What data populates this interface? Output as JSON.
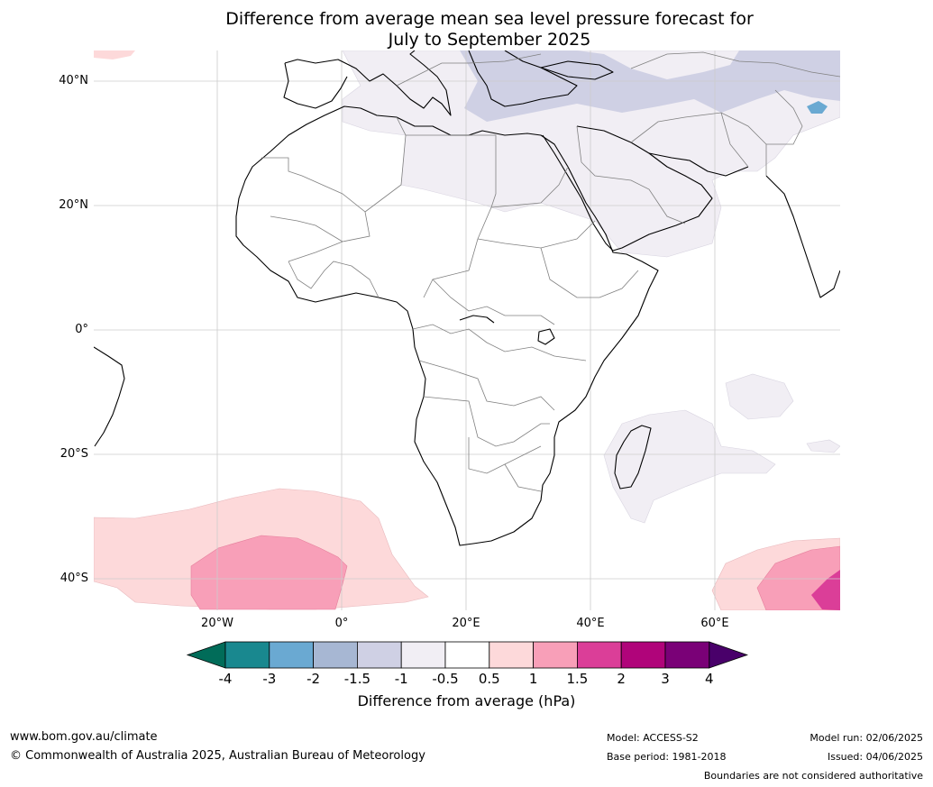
{
  "title_line1": "Difference from average mean sea level pressure forecast for",
  "title_line2": "July to September 2025",
  "map": {
    "lat_labels": [
      "40°N",
      "20°N",
      "0°",
      "20°S",
      "40°S"
    ],
    "lon_labels": [
      "20°W",
      "0°",
      "20°E",
      "40°E",
      "60°E"
    ],
    "lon_range": [
      -40,
      80
    ],
    "lat_range": [
      -45,
      45
    ]
  },
  "colorbar": {
    "ticks": [
      "-4",
      "-3",
      "-2",
      "-1.5",
      "-1",
      "-0.5",
      "0.5",
      "1",
      "1.5",
      "2",
      "3",
      "4"
    ],
    "colors": [
      "#19888f",
      "#6aa9d2",
      "#a7b7d3",
      "#cfd0e4",
      "#f1eef4",
      "#ffffff",
      "#fdd9da",
      "#f89fb8",
      "#db3e98",
      "#b0047a",
      "#7a0177"
    ],
    "under_color": "#016c59",
    "over_color": "#49006a",
    "label": "Difference from average (hPa)"
  },
  "footer": {
    "website": "www.bom.gov.au/climate",
    "copyright": "© Commonwealth of Australia 2025, Australian Bureau of Meteorology",
    "model": "Model: ACCESS-S2",
    "base_period": "Base period: 1981-2018",
    "model_run": "Model run: 02/06/2025",
    "issued": "Issued: 04/06/2025",
    "disclaimer": "Boundaries are not considered authoritative"
  }
}
